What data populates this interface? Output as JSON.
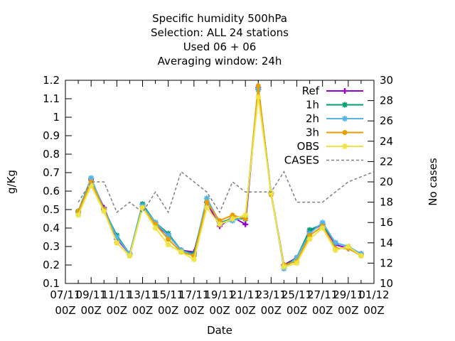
{
  "chart_data": {
    "type": "line",
    "title_lines": [
      "Specific humidity 500hPa",
      "Selection: ALL      24 stations",
      "Used  06 + 06",
      "Averaging window: 24h"
    ],
    "xlabel": "Date",
    "ylabel": "g/Kg",
    "y2label": "No cases",
    "x_ticks": [
      {
        "date": "2023-11-07",
        "l1": "07/11",
        "l2": "00Z"
      },
      {
        "date": "2023-11-09",
        "l1": "09/11",
        "l2": "00Z"
      },
      {
        "date": "2023-11-11",
        "l1": "11/11",
        "l2": "00Z"
      },
      {
        "date": "2023-11-13",
        "l1": "13/11",
        "l2": "00Z"
      },
      {
        "date": "2023-11-15",
        "l1": "15/11",
        "l2": "00Z"
      },
      {
        "date": "2023-11-17",
        "l1": "17/11",
        "l2": "00Z"
      },
      {
        "date": "2023-11-19",
        "l1": "19/11",
        "l2": "00Z"
      },
      {
        "date": "2023-11-21",
        "l1": "21/11",
        "l2": "00Z"
      },
      {
        "date": "2023-11-23",
        "l1": "23/11",
        "l2": "00Z"
      },
      {
        "date": "2023-11-25",
        "l1": "25/11",
        "l2": "00Z"
      },
      {
        "date": "2023-11-27",
        "l1": "27/11",
        "l2": "00Z"
      },
      {
        "date": "2023-11-29",
        "l1": "29/11",
        "l2": "00Z"
      },
      {
        "date": "2023-12-01",
        "l1": "01/12",
        "l2": "00Z"
      }
    ],
    "xlim": [
      "2023-11-07",
      "2023-12-01"
    ],
    "ylim": [
      0.1,
      1.2
    ],
    "y_ticks": [
      "0.1",
      "0.2",
      "0.3",
      "0.4",
      "0.5",
      "0.6",
      "0.7",
      "0.8",
      "0.9",
      "1",
      "1.1",
      "1.2"
    ],
    "y2lim": [
      10,
      30
    ],
    "y2_ticks": [
      "10",
      "12",
      "14",
      "16",
      "18",
      "20",
      "22",
      "24",
      "26",
      "28",
      "30"
    ],
    "x": [
      "2023-11-08",
      "2023-11-09",
      "2023-11-10",
      "2023-11-11",
      "2023-11-12",
      "2023-11-13",
      "2023-11-14",
      "2023-11-15",
      "2023-11-16",
      "2023-11-17",
      "2023-11-18",
      "2023-11-19",
      "2023-11-20",
      "2023-11-21",
      "2023-11-22",
      "2023-11-23",
      "2023-11-24",
      "2023-11-25",
      "2023-11-26",
      "2023-11-27",
      "2023-11-28",
      "2023-11-29",
      "2023-11-30"
    ],
    "series": [
      {
        "name": "Ref",
        "color": "#9400d3",
        "marker": "plus",
        "values": [
          0.49,
          0.66,
          0.51,
          0.34,
          0.26,
          0.52,
          0.42,
          0.36,
          0.28,
          0.27,
          0.54,
          0.41,
          0.46,
          0.42,
          1.16,
          0.59,
          0.2,
          0.24,
          0.38,
          0.42,
          0.31,
          0.29,
          0.26
        ]
      },
      {
        "name": "1h",
        "color": "#009e73",
        "marker": "star",
        "values": [
          0.49,
          0.67,
          0.5,
          0.36,
          0.26,
          0.53,
          0.43,
          0.37,
          0.28,
          0.26,
          0.56,
          0.43,
          0.45,
          0.45,
          1.15,
          0.59,
          0.19,
          0.24,
          0.39,
          0.42,
          0.32,
          0.3,
          0.26
        ]
      },
      {
        "name": "2h",
        "color": "#56b4e9",
        "marker": "star",
        "values": [
          0.48,
          0.67,
          0.5,
          0.35,
          0.26,
          0.52,
          0.43,
          0.36,
          0.28,
          0.25,
          0.56,
          0.43,
          0.44,
          0.46,
          1.15,
          0.59,
          0.18,
          0.24,
          0.37,
          0.43,
          0.32,
          0.3,
          0.26
        ]
      },
      {
        "name": "3h",
        "color": "#e69f00",
        "marker": "circle",
        "values": [
          0.49,
          0.65,
          0.5,
          0.32,
          0.25,
          0.51,
          0.42,
          0.34,
          0.27,
          0.25,
          0.54,
          0.44,
          0.47,
          0.45,
          1.17,
          0.58,
          0.2,
          0.22,
          0.36,
          0.41,
          0.29,
          0.29,
          0.25
        ]
      },
      {
        "name": "OBS",
        "color": "#f0e442",
        "marker": "star",
        "values": [
          0.47,
          0.63,
          0.49,
          0.32,
          0.25,
          0.51,
          0.4,
          0.31,
          0.27,
          0.23,
          0.51,
          0.42,
          0.45,
          0.47,
          1.11,
          0.59,
          0.19,
          0.21,
          0.34,
          0.4,
          0.28,
          0.3,
          0.25
        ]
      }
    ],
    "cases": {
      "name": "CASES",
      "color": "#808080",
      "x": [
        "2023-11-08",
        "2023-11-09",
        "2023-11-10",
        "2023-11-11",
        "2023-11-12",
        "2023-11-13",
        "2023-11-14",
        "2023-11-15",
        "2023-11-16",
        "2023-11-17",
        "2023-11-18",
        "2023-11-19",
        "2023-11-20",
        "2023-11-21",
        "2023-11-22",
        "2023-11-23",
        "2023-11-24",
        "2023-11-25",
        "2023-11-26",
        "2023-11-27",
        "2023-11-28",
        "2023-11-29",
        "2023-11-30",
        "2023-12-01"
      ],
      "values": [
        18,
        20,
        20,
        17,
        18,
        17,
        19,
        17,
        21,
        20,
        19,
        17,
        20,
        19,
        19,
        19,
        21,
        18,
        18,
        18,
        19,
        20,
        20.5,
        21
      ]
    },
    "grid": false,
    "legend_position": "top-right"
  }
}
